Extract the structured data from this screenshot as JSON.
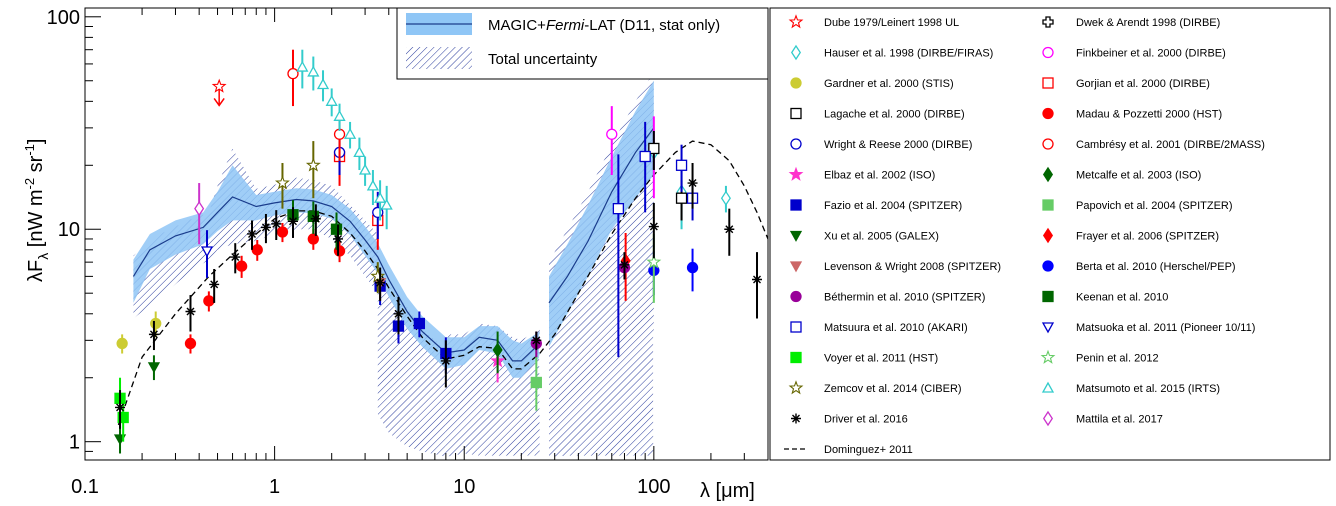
{
  "chart_data": {
    "type": "scatter",
    "xlabel": "λ [μm]",
    "ylabel": "λF_λ [nW m^-2 sr^-1]",
    "x_scale": "log",
    "y_scale": "log",
    "xlim": [
      0.1,
      400
    ],
    "ylim": [
      0.82,
      110
    ],
    "x_ticks": [
      {
        "value": 0.1,
        "label": "0.1"
      },
      {
        "value": 1,
        "label": "1"
      },
      {
        "value": 10,
        "label": "10"
      },
      {
        "value": 100,
        "label": "100"
      }
    ],
    "y_ticks": [
      {
        "value": 1,
        "label": "1"
      },
      {
        "value": 10,
        "label": "10"
      },
      {
        "value": 100,
        "label": "100"
      }
    ],
    "band_legend": [
      {
        "key": "stat",
        "text_pre": "MAGIC+",
        "text_em": "Fermi",
        "text_post": "-LAT (D11, stat only)"
      },
      {
        "key": "total",
        "text_pre": "Total uncertainty",
        "text_em": "",
        "text_post": ""
      }
    ],
    "magic_band": {
      "segments": [
        {
          "x": [
            0.18,
            0.22,
            0.3,
            0.42,
            0.5,
            0.6,
            0.8,
            1.0,
            1.3,
            1.6,
            2.0,
            2.5,
            3.0,
            3.5,
            4.0,
            5.0,
            6.0,
            8.0
          ],
          "y": [
            6.0,
            8.0,
            9.3,
            10.2,
            12.0,
            14.2,
            12.8,
            13.3,
            13.8,
            13.6,
            12.8,
            10.9,
            8.9,
            7.4,
            5.8,
            4.1,
            3.3,
            2.62
          ],
          "upper": [
            7.2,
            9.5,
            11.0,
            12.0,
            15.0,
            20.0,
            14.5,
            15.0,
            15.6,
            15.4,
            14.5,
            12.5,
            10.3,
            8.6,
            6.8,
            4.8,
            3.9,
            3.1
          ],
          "lower": [
            4.5,
            6.5,
            7.6,
            8.5,
            9.8,
            11.0,
            11.0,
            11.6,
            12.0,
            11.9,
            11.2,
            9.4,
            7.5,
            6.2,
            4.8,
            3.4,
            2.8,
            2.2
          ]
        },
        {
          "x": [
            8.0,
            10,
            12,
            15,
            18,
            20,
            25
          ],
          "y": [
            2.62,
            2.7,
            3.1,
            3.0,
            2.4,
            2.4,
            2.9
          ],
          "upper": [
            3.1,
            3.1,
            3.5,
            3.5,
            3.0,
            2.9,
            3.3
          ],
          "lower": [
            2.2,
            2.3,
            2.7,
            2.6,
            2.0,
            2.0,
            2.5
          ]
        },
        {
          "x": [
            28,
            35,
            45,
            60,
            80,
            100
          ],
          "y": [
            4.5,
            6.0,
            8.8,
            15.0,
            23.0,
            30.0
          ],
          "upper": [
            6.0,
            8.5,
            13.0,
            22.0,
            36.0,
            50.0
          ],
          "lower": [
            2.8,
            4.0,
            6.0,
            10.0,
            14.0,
            18.0
          ]
        }
      ]
    },
    "total_band": {
      "segments": [
        {
          "x": [
            0.18,
            0.25,
            0.35,
            0.45,
            0.5,
            0.6,
            0.8,
            1.0,
            1.3,
            1.6,
            2.0,
            2.5,
            3.0,
            3.5
          ],
          "upper": [
            7.5,
            9.5,
            11.0,
            12.0,
            16.0,
            24.0,
            15.5,
            16.2,
            17.5,
            17.0,
            16.0,
            13.0,
            11.0,
            9.5
          ],
          "lower": [
            3.8,
            4.8,
            6.2,
            7.2,
            8.0,
            8.5,
            8.8,
            9.5,
            10.0,
            10.0,
            9.0,
            7.5,
            6.0,
            5.0
          ]
        },
        {
          "x": [
            3.5,
            4.0,
            5.0,
            6.0,
            8.0
          ],
          "upper": [
            6.5,
            5.5,
            4.3,
            3.4,
            2.7
          ],
          "lower": [
            1.35,
            1.1,
            0.95,
            0.9,
            0.85
          ]
        },
        {
          "x": [
            8.0,
            10,
            12,
            15,
            18,
            20,
            25
          ],
          "upper": [
            3.2,
            3.2,
            3.6,
            3.5,
            3.1,
            3.0,
            3.4
          ],
          "lower": [
            0.85,
            0.88,
            0.86,
            0.86,
            0.86,
            0.86,
            0.86
          ]
        },
        {
          "x": [
            28,
            35,
            45,
            60,
            80,
            100
          ],
          "upper": [
            7.0,
            10.0,
            15.0,
            25.0,
            40.0,
            55.0
          ],
          "lower": [
            0.85,
            0.86,
            0.86,
            0.86,
            0.86,
            0.86
          ]
        }
      ],
      "dividers": [
        8.0,
        25.0,
        100.0
      ]
    },
    "dominguez_curve": {
      "x": [
        0.15,
        0.2,
        0.3,
        0.45,
        0.6,
        0.8,
        1.0,
        1.3,
        1.6,
        2.0,
        2.5,
        3.0,
        3.5,
        4.0,
        5.0,
        6.0,
        8.0,
        10,
        12,
        15,
        18,
        20,
        25,
        30,
        40,
        60,
        80,
        100,
        130,
        160,
        200,
        250,
        300,
        350,
        400
      ],
      "y": [
        1.2,
        2.5,
        4.0,
        6.0,
        7.6,
        9.5,
        11.2,
        12.2,
        12.2,
        11.5,
        9.6,
        7.9,
        6.5,
        5.3,
        3.9,
        3.1,
        2.45,
        2.55,
        2.8,
        2.75,
        2.2,
        2.2,
        2.6,
        3.2,
        5.0,
        9.5,
        14.0,
        18.0,
        23.0,
        26.0,
        25.0,
        21.0,
        16.0,
        12.0,
        9.0
      ]
    },
    "series": [
      {
        "name": "Dube 1979/Leinert 1998 UL",
        "marker": "star-open",
        "color": "#ff0000",
        "points": [
          [
            0.51,
            47,
            0,
            0
          ]
        ],
        "upper_limit": true
      },
      {
        "name": "Dwek & Arendt 1998 (DIRBE)",
        "marker": "cross-open",
        "color": "#000000",
        "points": []
      },
      {
        "name": "Hauser et al. 1998 (DIRBE/FIRAS)",
        "marker": "diamond-open",
        "color": "#33cccc",
        "points": [
          [
            140,
            15,
            5,
            5
          ],
          [
            240,
            14,
            2,
            2
          ],
          [
            100,
            23,
            5,
            5
          ]
        ]
      },
      {
        "name": "Finkbeiner et al. 2000 (DIRBE)",
        "marker": "circle-open",
        "color": "#ff00ff",
        "points": [
          [
            60,
            28,
            10,
            10
          ],
          [
            100,
            24,
            10,
            10
          ]
        ]
      },
      {
        "name": "Gardner et al. 2000 (STIS)",
        "marker": "circle",
        "color": "#cccc33",
        "points": [
          [
            0.157,
            2.9,
            0.3,
            0.3
          ],
          [
            0.236,
            3.6,
            0.5,
            0.5
          ]
        ]
      },
      {
        "name": "Gorjian et al. 2000 (DIRBE)",
        "marker": "square-open",
        "color": "#ff0000",
        "points": [
          [
            2.2,
            22,
            6,
            6
          ],
          [
            3.5,
            11,
            3,
            3
          ]
        ]
      },
      {
        "name": "Lagache et al. 2000 (DIRBE)",
        "marker": "square-open",
        "color": "#000000",
        "points": [
          [
            100,
            24,
            5,
            5
          ],
          [
            140,
            14,
            3,
            3
          ]
        ]
      },
      {
        "name": "Madau & Pozzetti 2000 (HST)",
        "marker": "circle",
        "color": "#ff0000",
        "points": [
          [
            0.36,
            2.9,
            0.3,
            0.3
          ],
          [
            0.45,
            4.6,
            0.5,
            0.5
          ],
          [
            0.67,
            6.7,
            0.8,
            0.8
          ],
          [
            0.81,
            8.0,
            0.9,
            0.9
          ],
          [
            1.1,
            9.7,
            1.0,
            1.0
          ],
          [
            1.6,
            9.0,
            1.0,
            1.0
          ],
          [
            2.2,
            7.9,
            0.9,
            0.9
          ]
        ]
      },
      {
        "name": "Wright & Reese 2000 (DIRBE)",
        "marker": "circle-open",
        "color": "#0000cc",
        "points": [
          [
            2.2,
            23,
            5,
            5
          ],
          [
            3.5,
            12,
            3,
            3
          ]
        ]
      },
      {
        "name": "Cambrésy et al. 2001 (DIRBE/2MASS)",
        "marker": "circle-open",
        "color": "#ff0000",
        "points": [
          [
            1.25,
            54,
            16,
            16
          ],
          [
            2.2,
            28,
            7,
            7
          ]
        ]
      },
      {
        "name": "Elbaz et al. 2002 (ISO)",
        "marker": "star",
        "color": "#ff33cc",
        "points": [
          [
            15,
            2.4,
            0.5,
            0.5
          ]
        ]
      },
      {
        "name": "Metcalfe et al. 2003 (ISO)",
        "marker": "diamond",
        "color": "#006600",
        "points": [
          [
            15,
            2.7,
            0.6,
            0.6
          ]
        ]
      },
      {
        "name": "Fazio et al. 2004 (SPITZER)",
        "marker": "square",
        "color": "#0000cc",
        "points": [
          [
            3.6,
            5.4,
            1.0,
            1.0
          ],
          [
            4.5,
            3.5,
            0.6,
            0.6
          ],
          [
            5.8,
            3.6,
            0.5,
            0.5
          ],
          [
            8.0,
            2.6,
            0.5,
            0.5
          ]
        ]
      },
      {
        "name": "Papovich et al. 2004 (SPITZER)",
        "marker": "square",
        "color": "#66cc66",
        "points": [
          [
            24,
            1.9,
            0.5,
            0.8
          ]
        ]
      },
      {
        "name": "Xu et al. 2005 (GALEX)",
        "marker": "triangle-down",
        "color": "#006600",
        "points": [
          [
            0.153,
            1.03,
            0.15,
            0.15
          ],
          [
            0.231,
            2.25,
            0.3,
            0.3
          ]
        ]
      },
      {
        "name": "Frayer et al. 2006 (SPITZER)",
        "marker": "diamond",
        "color": "#ff0000",
        "points": [
          [
            71,
            7.1,
            2.5,
            2.5
          ]
        ]
      },
      {
        "name": "Levenson & Wright 2008 (SPITZER)",
        "marker": "triangle-down",
        "color": "#cc6666",
        "points": [
          [
            3.6,
            5.6,
            1.0,
            1.0
          ]
        ]
      },
      {
        "name": "Berta et al. 2010 (Herschel/PEP)",
        "marker": "circle",
        "color": "#0000ff",
        "points": [
          [
            100,
            6.4,
            1.5,
            1.5
          ],
          [
            160,
            6.6,
            1.5,
            1.5
          ]
        ]
      },
      {
        "name": "Béthermin et al. 2010 (SPITZER)",
        "marker": "circle",
        "color": "#990099",
        "points": [
          [
            24,
            2.9,
            0.4,
            0.4
          ],
          [
            70,
            6.6,
            0.8,
            0.8
          ]
        ]
      },
      {
        "name": "Keenan et al. 2010",
        "marker": "square",
        "color": "#006600",
        "points": [
          [
            1.25,
            11.7,
            2,
            2
          ],
          [
            1.6,
            11.5,
            2,
            2
          ],
          [
            2.12,
            10.0,
            2,
            2
          ]
        ]
      },
      {
        "name": "Matsuura et al. 2010 (AKARI)",
        "marker": "square-open",
        "color": "#0000cc",
        "points": [
          [
            65,
            12.5,
            10,
            10
          ],
          [
            90,
            22,
            10,
            10
          ],
          [
            140,
            20,
            5,
            5
          ],
          [
            160,
            14,
            3,
            3
          ]
        ]
      },
      {
        "name": "Matsuoka et al. 2011 (Pioneer 10/11)",
        "marker": "triangle-down-open",
        "color": "#0000cc",
        "points": [
          [
            0.44,
            7.9,
            2.0,
            2.0
          ]
        ]
      },
      {
        "name": "Voyer et al. 2011 (HST)",
        "marker": "square",
        "color": "#00ee00",
        "points": [
          [
            0.153,
            1.6,
            0.4,
            0.4
          ],
          [
            0.159,
            1.3,
            0.3,
            0.3
          ]
        ]
      },
      {
        "name": "Penin et al. 2012",
        "marker": "star-open",
        "color": "#66cc66",
        "points": [
          [
            100,
            7.0,
            2.5,
            2.5
          ]
        ]
      },
      {
        "name": "Zemcov et al. 2014 (CIBER)",
        "marker": "star-open",
        "color": "#666600",
        "points": [
          [
            1.1,
            16.5,
            4,
            4
          ],
          [
            1.6,
            20,
            6,
            6
          ],
          [
            3.5,
            6.0,
            1,
            1
          ]
        ]
      },
      {
        "name": "Matsumoto et al. 2015 (IRTS)",
        "marker": "triangle-open",
        "color": "#33cccc",
        "points": [
          [
            1.4,
            58,
            12,
            12
          ],
          [
            1.6,
            55,
            10,
            10
          ],
          [
            1.8,
            48,
            8,
            8
          ],
          [
            2.0,
            40,
            6,
            6
          ],
          [
            2.2,
            34,
            5,
            5
          ],
          [
            2.5,
            28,
            4,
            4
          ],
          [
            2.8,
            23,
            4,
            4
          ],
          [
            3.0,
            19,
            3,
            3
          ],
          [
            3.3,
            16,
            3,
            3
          ],
          [
            3.6,
            14,
            3,
            3
          ],
          [
            3.9,
            13,
            3,
            3
          ]
        ]
      },
      {
        "name": "Driver et al. 2016",
        "marker": "asterisk",
        "color": "#000000",
        "points": [
          [
            0.153,
            1.45,
            0.3,
            0.3
          ],
          [
            0.231,
            3.2,
            0.5,
            0.5
          ],
          [
            0.36,
            4.1,
            0.8,
            0.8
          ],
          [
            0.48,
            5.5,
            1.0,
            1.0
          ],
          [
            0.62,
            7.4,
            1.2,
            1.2
          ],
          [
            0.76,
            9.5,
            1.5,
            1.5
          ],
          [
            0.9,
            10.2,
            1.6,
            1.6
          ],
          [
            1.02,
            10.6,
            1.7,
            1.7
          ],
          [
            1.25,
            10.9,
            1.8,
            1.8
          ],
          [
            1.65,
            11.2,
            1.9,
            1.9
          ],
          [
            2.16,
            9.0,
            1.5,
            1.5
          ],
          [
            3.6,
            5.6,
            1.0,
            1.0
          ],
          [
            4.5,
            4.0,
            0.8,
            0.8
          ],
          [
            8.0,
            2.4,
            0.6,
            0.6
          ],
          [
            24,
            3.0,
            0.3,
            0.3
          ],
          [
            70,
            6.8,
            1.0,
            1.0
          ],
          [
            100,
            10.3,
            3,
            3
          ],
          [
            160,
            16.5,
            4,
            4
          ],
          [
            250,
            10.0,
            2.5,
            2.5
          ],
          [
            350,
            5.8,
            2,
            2
          ]
        ]
      },
      {
        "name": "Mattila et al. 2017",
        "marker": "diamond-open",
        "color": "#cc33cc",
        "points": [
          [
            0.4,
            12.5,
            4,
            4
          ]
        ]
      }
    ],
    "extra_legend": {
      "name": "Dominguez+ 2011",
      "marker": "dashed-line",
      "color": "#000000"
    }
  }
}
